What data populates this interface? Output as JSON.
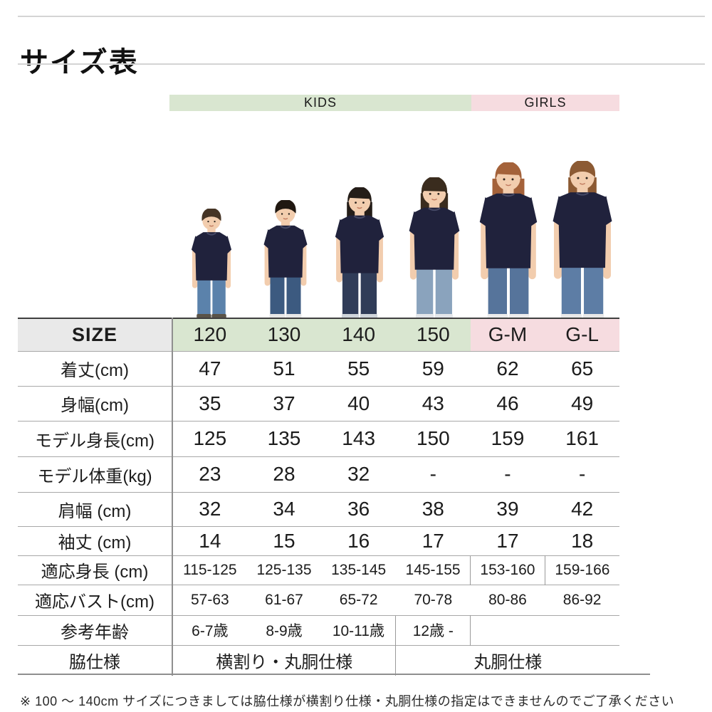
{
  "title": "サイズ表",
  "groups": {
    "kids": "KIDS",
    "girls": "GIRLS"
  },
  "table": {
    "size_label": "SIZE",
    "sizes": [
      "120",
      "130",
      "140",
      "150",
      "G-M",
      "G-L"
    ],
    "rows": [
      {
        "key": "body-length",
        "label": "着丈(cm)",
        "values": [
          "47",
          "51",
          "55",
          "59",
          "62",
          "65"
        ]
      },
      {
        "key": "body-width",
        "label": "身幅(cm)",
        "values": [
          "35",
          "37",
          "40",
          "43",
          "46",
          "49"
        ]
      },
      {
        "key": "model-height",
        "label": "モデル身長(cm)",
        "values": [
          "125",
          "135",
          "143",
          "150",
          "159",
          "161"
        ]
      },
      {
        "key": "model-weight",
        "label": "モデル体重(kg)",
        "values": [
          "23",
          "28",
          "32",
          "-",
          "-",
          "-"
        ]
      },
      {
        "key": "shoulder-width",
        "label": "肩幅 (cm)",
        "values": [
          "32",
          "34",
          "36",
          "38",
          "39",
          "42"
        ]
      },
      {
        "key": "sleeve-length",
        "label": "袖丈 (cm)",
        "values": [
          "14",
          "15",
          "16",
          "17",
          "17",
          "18"
        ]
      },
      {
        "key": "fit-height",
        "label": "適応身長 (cm)",
        "values": [
          "115-125",
          "125-135",
          "135-145",
          "145-155",
          "153-160",
          "159-166"
        ]
      },
      {
        "key": "fit-bust",
        "label": "適応バスト(cm)",
        "values": [
          "57-63",
          "61-67",
          "65-72",
          "70-78",
          "80-86",
          "86-92"
        ]
      },
      {
        "key": "reference-age",
        "label": "参考年齢",
        "values": [
          "6-7歳",
          "8-9歳",
          "10-11歳",
          "12歳 -",
          "",
          ""
        ]
      },
      {
        "key": "side-seam-spec",
        "label": "脇仕様",
        "spans": [
          {
            "text": "横割り・丸胴仕様",
            "cols": 3
          },
          {
            "text": "丸胴仕様",
            "cols": 3
          }
        ]
      }
    ]
  },
  "models": [
    {
      "size": "120",
      "description": "boy model in navy t-shirt and jeans"
    },
    {
      "size": "130",
      "description": "boy model in navy t-shirt and dark jeans"
    },
    {
      "size": "140",
      "description": "girl model in navy t-shirt and dark jeans"
    },
    {
      "size": "150",
      "description": "girl model in navy t-shirt and jeans"
    },
    {
      "size": "G-M",
      "description": "woman model in navy t-shirt and jeans"
    },
    {
      "size": "G-L",
      "description": "woman model in navy t-shirt and jeans"
    }
  ],
  "footnote": "※ 100 ～ 140cm サイズにつきましては脇仕様が横割り仕様・丸胴仕様の指定はできませんのでご了承ください",
  "colors": {
    "kids_bg": "#d9e6d0",
    "girls_bg": "#f6dce0",
    "size_cell_bg": "#e9e9e9",
    "shirt_navy": "#20223c",
    "skin": "#f2cdae"
  }
}
